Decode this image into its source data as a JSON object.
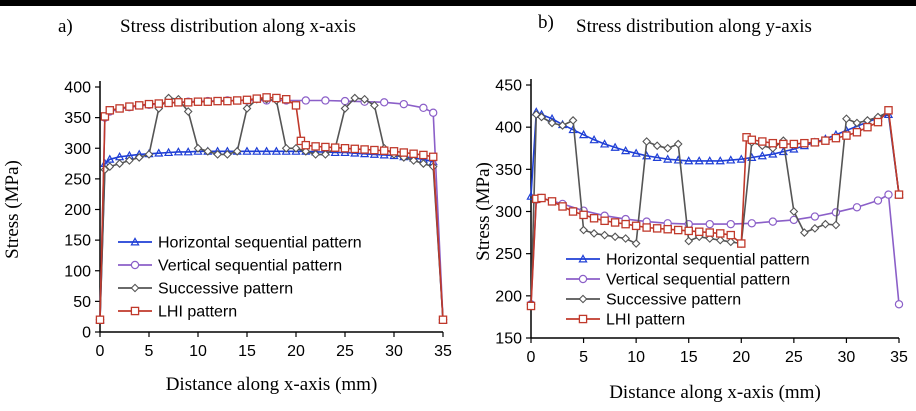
{
  "chart_data": [
    {
      "type": "line",
      "panel": "a)",
      "title": "Stress distribution along x-axis",
      "xlabel": "Distance along x-axis (mm)",
      "ylabel": "Stress (MPa)",
      "xlim": [
        0,
        35
      ],
      "ylim": [
        0,
        400
      ],
      "xticks": [
        0,
        5,
        10,
        15,
        20,
        25,
        30,
        35
      ],
      "yticks": [
        0,
        50,
        100,
        150,
        200,
        250,
        300,
        350,
        400
      ],
      "legend_position": "bottom-left",
      "series": [
        {
          "name": "Horizontal sequential pattern",
          "color": "#1f3fd6",
          "marker": "triangle",
          "x": [
            0,
            0.5,
            1,
            2,
            3,
            4,
            5,
            6,
            7,
            8,
            9,
            10,
            11,
            12,
            13,
            14,
            15,
            16,
            17,
            18,
            19,
            20,
            21,
            22,
            23,
            24,
            25,
            26,
            27,
            28,
            29,
            30,
            31,
            32,
            33,
            34,
            35
          ],
          "y": [
            20,
            275,
            282,
            286,
            288,
            290,
            291,
            292,
            293,
            294,
            294,
            295,
            295,
            295,
            295,
            295,
            295,
            295,
            295,
            295,
            295,
            295,
            295,
            294,
            294,
            293,
            293,
            292,
            291,
            290,
            289,
            288,
            286,
            284,
            282,
            278,
            20
          ]
        },
        {
          "name": "Vertical sequential pattern",
          "color": "#8b5fc8",
          "marker": "circle",
          "x": [
            0,
            0.5,
            1,
            3,
            5,
            7,
            9,
            11,
            13,
            15,
            17,
            19,
            21,
            23,
            25,
            27,
            29,
            31,
            33,
            34,
            35
          ],
          "y": [
            20,
            350,
            360,
            367,
            371,
            374,
            376,
            377,
            378,
            378,
            378,
            378,
            378,
            378,
            377,
            376,
            375,
            372,
            366,
            358,
            20
          ]
        },
        {
          "name": "Successive pattern",
          "color": "#555555",
          "marker": "diamond",
          "x": [
            0,
            0.5,
            1,
            2,
            3,
            4,
            5,
            6,
            7,
            8,
            9,
            10,
            11,
            12,
            13,
            14,
            15,
            16,
            17,
            18,
            19,
            20,
            21,
            22,
            23,
            24,
            25,
            26,
            27,
            28,
            29,
            30,
            31,
            32,
            33,
            34,
            35
          ],
          "y": [
            20,
            265,
            270,
            275,
            280,
            285,
            290,
            365,
            382,
            380,
            360,
            300,
            295,
            290,
            290,
            295,
            365,
            380,
            380,
            378,
            300,
            300,
            295,
            290,
            290,
            300,
            365,
            382,
            380,
            370,
            300,
            290,
            285,
            280,
            275,
            270,
            20
          ]
        },
        {
          "name": "LHI pattern",
          "color": "#c0392b",
          "marker": "square",
          "x": [
            0,
            0.5,
            1,
            2,
            3,
            4,
            5,
            6,
            7,
            8,
            9,
            10,
            11,
            12,
            13,
            14,
            15,
            16,
            17,
            18,
            19,
            20,
            20.5,
            21,
            22,
            23,
            24,
            25,
            26,
            27,
            28,
            29,
            30,
            31,
            32,
            33,
            34,
            35
          ],
          "y": [
            20,
            352,
            362,
            365,
            368,
            370,
            372,
            373,
            374,
            375,
            375,
            376,
            376,
            377,
            377,
            378,
            379,
            381,
            383,
            382,
            380,
            370,
            312,
            305,
            303,
            302,
            301,
            300,
            299,
            298,
            297,
            296,
            295,
            293,
            291,
            289,
            286,
            20
          ]
        }
      ]
    },
    {
      "type": "line",
      "panel": "b)",
      "title": "Stress distribution along y-axis",
      "xlabel": "Distance along x-axis (mm)",
      "ylabel": "Stress (MPa)",
      "xlim": [
        0,
        35
      ],
      "ylim": [
        150,
        450
      ],
      "xticks": [
        0,
        5,
        10,
        15,
        20,
        25,
        30,
        35
      ],
      "yticks": [
        150,
        200,
        250,
        300,
        350,
        400,
        450
      ],
      "legend_position": "bottom-left",
      "series": [
        {
          "name": "Horizontal sequential pattern",
          "color": "#1f3fd6",
          "marker": "triangle",
          "x": [
            0,
            0.5,
            1,
            2,
            3,
            4,
            5,
            6,
            7,
            8,
            9,
            10,
            11,
            12,
            13,
            14,
            15,
            16,
            17,
            18,
            19,
            20,
            21,
            22,
            23,
            24,
            25,
            26,
            27,
            28,
            29,
            30,
            31,
            32,
            33,
            34,
            35
          ],
          "y": [
            318,
            418,
            415,
            410,
            403,
            397,
            391,
            385,
            380,
            376,
            372,
            369,
            366,
            364,
            362,
            361,
            360,
            360,
            360,
            360,
            361,
            362,
            364,
            366,
            368,
            371,
            374,
            378,
            382,
            386,
            391,
            396,
            401,
            406,
            411,
            415,
            320
          ]
        },
        {
          "name": "Vertical sequential pattern",
          "color": "#8b5fc8",
          "marker": "circle",
          "x": [
            0,
            0.5,
            1,
            3,
            5,
            7,
            9,
            11,
            13,
            15,
            17,
            19,
            21,
            23,
            25,
            27,
            29,
            31,
            33,
            34,
            35
          ],
          "y": [
            190,
            314,
            316,
            309,
            301,
            295,
            291,
            288,
            286,
            285,
            285,
            285,
            286,
            288,
            290,
            294,
            299,
            305,
            313,
            320,
            190
          ]
        },
        {
          "name": "Successive pattern",
          "color": "#555555",
          "marker": "diamond",
          "x": [
            0,
            0.5,
            1,
            2,
            3,
            4,
            5,
            6,
            7,
            8,
            9,
            10,
            11,
            12,
            13,
            14,
            15,
            16,
            17,
            18,
            19,
            20,
            21,
            22,
            23,
            24,
            25,
            26,
            27,
            28,
            29,
            30,
            31,
            32,
            33,
            34,
            35
          ],
          "y": [
            190,
            415,
            412,
            405,
            402,
            408,
            278,
            274,
            272,
            270,
            268,
            262,
            383,
            378,
            375,
            380,
            265,
            270,
            268,
            266,
            264,
            262,
            382,
            378,
            375,
            384,
            300,
            275,
            280,
            285,
            284,
            410,
            405,
            408,
            412,
            418,
            320
          ]
        },
        {
          "name": "LHI pattern",
          "color": "#c0392b",
          "marker": "square",
          "x": [
            0,
            0.5,
            1,
            2,
            3,
            4,
            5,
            6,
            7,
            8,
            9,
            10,
            11,
            12,
            13,
            14,
            15,
            16,
            17,
            18,
            19,
            20,
            20.5,
            21,
            22,
            23,
            24,
            25,
            26,
            27,
            28,
            29,
            30,
            31,
            32,
            33,
            34,
            35
          ],
          "y": [
            188,
            315,
            316,
            312,
            306,
            300,
            296,
            292,
            289,
            287,
            285,
            283,
            281,
            280,
            279,
            278,
            277,
            276,
            275,
            274,
            272,
            262,
            388,
            385,
            383,
            381,
            380,
            380,
            381,
            382,
            384,
            387,
            390,
            394,
            400,
            406,
            420,
            320
          ]
        }
      ]
    }
  ]
}
